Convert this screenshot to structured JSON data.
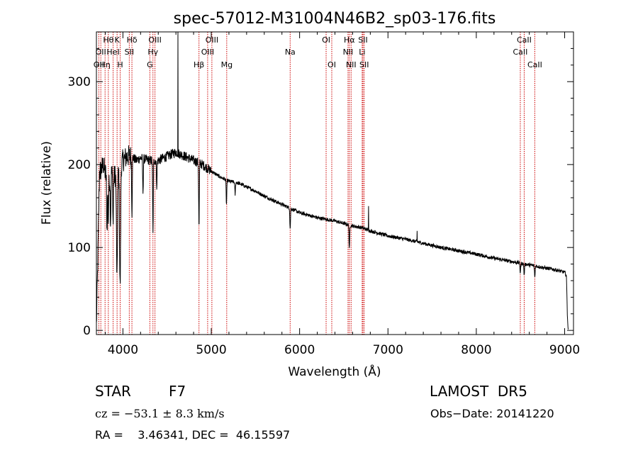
{
  "chart_data": {
    "type": "line",
    "title": "spec-57012-M31004N46B2_sp03-176.fits",
    "xlabel": "Wavelength (Å)",
    "ylabel": "Flux (relative)",
    "xlim": [
      3700,
      9100
    ],
    "ylim": [
      -5,
      360
    ],
    "xticks": [
      4000,
      5000,
      6000,
      7000,
      8000,
      9000
    ],
    "yticks": [
      0,
      100,
      200,
      300
    ],
    "grid": false,
    "line_color": "#000000",
    "marker_color": "#cc0000",
    "continuum": [
      [
        3700,
        5
      ],
      [
        3715,
        80
      ],
      [
        3735,
        190
      ],
      [
        3780,
        200
      ],
      [
        3830,
        175
      ],
      [
        3870,
        190
      ],
      [
        3900,
        185
      ],
      [
        3950,
        195
      ],
      [
        4000,
        205
      ],
      [
        4050,
        210
      ],
      [
        4100,
        210
      ],
      [
        4150,
        205
      ],
      [
        4200,
        208
      ],
      [
        4300,
        205
      ],
      [
        4400,
        205
      ],
      [
        4500,
        210
      ],
      [
        4600,
        215
      ],
      [
        4700,
        210
      ],
      [
        4800,
        205
      ],
      [
        4900,
        200
      ],
      [
        5000,
        192
      ],
      [
        5100,
        185
      ],
      [
        5200,
        180
      ],
      [
        5300,
        178
      ],
      [
        5400,
        173
      ],
      [
        5500,
        168
      ],
      [
        5600,
        162
      ],
      [
        5700,
        157
      ],
      [
        5800,
        152
      ],
      [
        5900,
        147
      ],
      [
        6000,
        142
      ],
      [
        6200,
        136
      ],
      [
        6400,
        132
      ],
      [
        6500,
        129
      ],
      [
        6600,
        126
      ],
      [
        6700,
        124
      ],
      [
        6800,
        120
      ],
      [
        7000,
        114
      ],
      [
        7200,
        110
      ],
      [
        7400,
        105
      ],
      [
        7600,
        100
      ],
      [
        7800,
        96
      ],
      [
        8000,
        92
      ],
      [
        8200,
        87
      ],
      [
        8400,
        83
      ],
      [
        8600,
        79
      ],
      [
        8800,
        75
      ],
      [
        8900,
        73
      ],
      [
        9000,
        70
      ],
      [
        9020,
        66
      ],
      [
        9030,
        20
      ],
      [
        9040,
        0
      ]
    ],
    "absorption_features": [
      {
        "x": 3820,
        "depth": 60
      },
      {
        "x": 3835,
        "depth": 45
      },
      {
        "x": 3860,
        "depth": 55
      },
      {
        "x": 3889,
        "depth": 60
      },
      {
        "x": 3933,
        "depth": 130
      },
      {
        "x": 3968,
        "depth": 145
      },
      {
        "x": 4102,
        "depth": 70
      },
      {
        "x": 4227,
        "depth": 40
      },
      {
        "x": 4340,
        "depth": 90
      },
      {
        "x": 4383,
        "depth": 30
      },
      {
        "x": 4861,
        "depth": 80
      },
      {
        "x": 5172,
        "depth": 30
      },
      {
        "x": 5270,
        "depth": 15
      },
      {
        "x": 5893,
        "depth": 25
      },
      {
        "x": 6563,
        "depth": 30
      },
      {
        "x": 8498,
        "depth": 12
      },
      {
        "x": 8542,
        "depth": 14
      },
      {
        "x": 8662,
        "depth": 14
      }
    ],
    "emission_spikes": [
      {
        "x": 4622,
        "peak": 360
      },
      {
        "x": 6780,
        "peak": 150
      },
      {
        "x": 7330,
        "peak": 120
      }
    ],
    "line_markers": [
      {
        "x": 3727,
        "label": "OII",
        "row": 2
      },
      {
        "x": 3750,
        "label": "OII",
        "row": 1
      },
      {
        "x": 3798,
        "label": "Hη",
        "row": 2
      },
      {
        "x": 3835,
        "label": "Hθ",
        "row": 0
      },
      {
        "x": 3889,
        "label": "HeI",
        "row": 1
      },
      {
        "x": 3934,
        "label": "K",
        "row": 0
      },
      {
        "x": 3969,
        "label": "H",
        "row": 2
      },
      {
        "x": 4072,
        "label": "SII",
        "row": 1
      },
      {
        "x": 4102,
        "label": "Hδ",
        "row": 0
      },
      {
        "x": 4305,
        "label": "G",
        "row": 2
      },
      {
        "x": 4340,
        "label": "Hγ",
        "row": 1
      },
      {
        "x": 4363,
        "label": "OIII",
        "row": 0
      },
      {
        "x": 4861,
        "label": "Hβ",
        "row": 2
      },
      {
        "x": 4959,
        "label": "OIII",
        "row": 1
      },
      {
        "x": 5007,
        "label": "OIII",
        "row": 0
      },
      {
        "x": 5175,
        "label": "Mg",
        "row": 2
      },
      {
        "x": 5893,
        "label": "Na",
        "row": 1
      },
      {
        "x": 6300,
        "label": "OI",
        "row": 0
      },
      {
        "x": 6364,
        "label": "OI",
        "row": 2
      },
      {
        "x": 6548,
        "label": "NII",
        "row": 1
      },
      {
        "x": 6563,
        "label": "Hα",
        "row": 0
      },
      {
        "x": 6583,
        "label": "NII",
        "row": 2
      },
      {
        "x": 6708,
        "label": "Li",
        "row": 1
      },
      {
        "x": 6717,
        "label": "SII",
        "row": 0
      },
      {
        "x": 6731,
        "label": "SII",
        "row": 2
      },
      {
        "x": 8498,
        "label": "CaII",
        "row": 1
      },
      {
        "x": 8542,
        "label": "CaII",
        "row": 0
      },
      {
        "x": 8662,
        "label": "CaII",
        "row": 2
      }
    ]
  },
  "info": {
    "class": "STAR",
    "subclass": "F7",
    "survey": "LAMOST  DR5",
    "redshift": "cz = −53.1 ± 8.3 km/s",
    "obs_date": "Obs−Date: 20141220",
    "coords": "RA =    3.46341, DEC =  46.15597"
  }
}
